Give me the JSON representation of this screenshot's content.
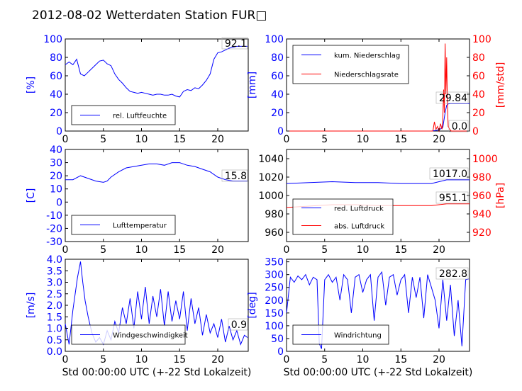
{
  "title": "2012-08-02 Wetterdaten Station FUR□",
  "colors": {
    "primary": "#0000ff",
    "secondary": "#ff0000",
    "axis": "#000000"
  },
  "chart_data": [
    {
      "type": "line",
      "panel": "top-left",
      "ylabel": "[%]",
      "xlim": [
        0,
        24
      ],
      "ylim": [
        0,
        100
      ],
      "xticks": [
        0,
        5,
        10,
        15,
        20
      ],
      "yticks": [
        0,
        20,
        40,
        60,
        80,
        100
      ],
      "legend": {
        "placement": "lower-left",
        "entries": [
          "rel. Luftfeuchte"
        ]
      },
      "annotation": "92.1",
      "series": [
        {
          "name": "rel. Luftfeuchte",
          "color": "#0000ff",
          "x": [
            0,
            0.5,
            1,
            1.5,
            2,
            2.5,
            3,
            3.5,
            4,
            4.5,
            5,
            5.5,
            6,
            6.5,
            7,
            7.5,
            8,
            8.5,
            9,
            9.5,
            10,
            10.5,
            11,
            11.5,
            12,
            12.5,
            13,
            13.5,
            14,
            14.5,
            15,
            15.5,
            16,
            16.5,
            17,
            17.5,
            18,
            18.5,
            19,
            19.5,
            20,
            20.5,
            21,
            21.5,
            22,
            22.5,
            23,
            23.5,
            23.9
          ],
          "y": [
            72,
            75,
            72,
            78,
            62,
            60,
            64,
            68,
            72,
            76,
            77,
            73,
            71,
            62,
            56,
            52,
            47,
            43,
            42,
            41,
            42,
            41,
            40,
            39,
            40,
            40,
            39,
            39,
            40,
            38,
            37,
            43,
            45,
            44,
            47,
            46,
            50,
            55,
            62,
            78,
            85,
            86,
            88,
            90,
            91,
            92,
            92,
            92,
            92
          ]
        }
      ]
    },
    {
      "type": "line",
      "panel": "top-right",
      "ylabel": "[mm]",
      "ylabel_right": "[mm/std]",
      "xlim": [
        0,
        24
      ],
      "ylim": [
        0,
        100
      ],
      "ylim_right": [
        0,
        100
      ],
      "xticks": [
        0,
        5,
        10,
        15,
        20
      ],
      "yticks": [
        0,
        20,
        40,
        60,
        80,
        100
      ],
      "yticks_right": [
        0,
        20,
        40,
        60,
        80,
        100
      ],
      "legend": {
        "placement": "upper-left",
        "entries": [
          "kum. Niederschlag",
          "Niederschlagsrate"
        ]
      },
      "annotations": [
        "29.84",
        "0.0"
      ],
      "series": [
        {
          "name": "kum. Niederschlag",
          "color": "#0000ff",
          "axis": "left",
          "x": [
            0,
            19,
            19.5,
            20,
            20.5,
            20.8,
            21,
            21.2,
            21.5,
            22,
            24
          ],
          "y": [
            0,
            0,
            0.5,
            1.2,
            4,
            20,
            28,
            29.5,
            29.8,
            29.84,
            29.84
          ]
        },
        {
          "name": "Niederschlagsrate",
          "color": "#ff0000",
          "axis": "right",
          "x": [
            0,
            19.2,
            19.4,
            19.6,
            19.8,
            20,
            20.2,
            20.4,
            20.5,
            20.6,
            20.7,
            20.8,
            20.9,
            21,
            21.1,
            21.2,
            21.4,
            21.6,
            22,
            24
          ],
          "y": [
            0,
            0,
            10,
            2,
            5,
            0,
            8,
            2,
            15,
            45,
            20,
            95,
            40,
            80,
            30,
            5,
            2,
            0,
            0,
            0
          ]
        }
      ]
    },
    {
      "type": "line",
      "panel": "middle-left",
      "ylabel": "[C]",
      "xlim": [
        0,
        24
      ],
      "ylim": [
        -30,
        40
      ],
      "xticks": [
        0,
        5,
        10,
        15,
        20
      ],
      "yticks": [
        -30,
        -20,
        -10,
        0,
        10,
        20,
        30,
        40
      ],
      "legend": {
        "placement": "lower-left",
        "entries": [
          "Lufttemperatur"
        ]
      },
      "annotation": "15.8",
      "series": [
        {
          "name": "Lufttemperatur",
          "color": "#0000ff",
          "x": [
            0,
            1,
            2,
            3,
            4,
            5,
            5.5,
            6,
            7,
            8,
            9,
            10,
            11,
            12,
            13,
            14,
            15,
            16,
            17,
            18,
            19,
            20,
            21,
            22,
            23,
            23.9
          ],
          "y": [
            17,
            17,
            20,
            18,
            16,
            15,
            16,
            19,
            23,
            26,
            27,
            28,
            29,
            29,
            28,
            30,
            30,
            28,
            27,
            25,
            23,
            19,
            17,
            16,
            16,
            16
          ]
        }
      ]
    },
    {
      "type": "line",
      "panel": "middle-right",
      "ylabel_right": "[hPa]",
      "xlim": [
        0,
        24
      ],
      "ylim": [
        950,
        1050
      ],
      "ylim_right": [
        910,
        1010
      ],
      "xticks": [
        0,
        5,
        10,
        15,
        20
      ],
      "yticks": [
        960,
        980,
        1000,
        1020,
        1040
      ],
      "yticks_right": [
        920,
        940,
        960,
        980,
        1000
      ],
      "legend": {
        "placement": "lower-left",
        "entries": [
          "red. Luftdruck",
          "abs. Luftdruck"
        ]
      },
      "annotations": [
        "1017.0",
        "951.1"
      ],
      "series": [
        {
          "name": "red. Luftdruck",
          "color": "#0000ff",
          "axis": "left",
          "x": [
            0,
            3,
            6,
            9,
            12,
            15,
            18,
            19,
            20,
            21,
            22,
            24
          ],
          "y": [
            1013,
            1014,
            1015,
            1014,
            1014,
            1013,
            1013,
            1013,
            1015,
            1017,
            1017,
            1017
          ]
        },
        {
          "name": "abs. Luftdruck",
          "color": "#ff0000",
          "axis": "right",
          "x": [
            0,
            2,
            4,
            6,
            9,
            12,
            15,
            18,
            19,
            20,
            21,
            22,
            24
          ],
          "y": [
            947,
            948,
            949,
            950,
            950,
            949,
            949,
            949,
            949,
            950,
            951,
            951,
            951
          ]
        }
      ]
    },
    {
      "type": "line",
      "panel": "bottom-left",
      "ylabel": "[m/s]",
      "xlabel": "Std 00:00:00 UTC (+-22 Std Lokalzeit)",
      "xlim": [
        0,
        24
      ],
      "ylim": [
        0,
        4
      ],
      "xticks": [
        0,
        5,
        10,
        15,
        20
      ],
      "yticks": [
        0.0,
        0.5,
        1.0,
        1.5,
        2.0,
        2.5,
        3.0,
        3.5,
        4.0
      ],
      "legend": {
        "placement": "lower-left",
        "entries": [
          "Windgeschwindigkeit"
        ]
      },
      "annotation": "0.9",
      "series": [
        {
          "name": "Windgeschwindigkeit",
          "color": "#0000ff",
          "x": [
            0,
            0.5,
            1,
            1.3,
            1.6,
            2,
            2.3,
            2.6,
            3,
            3.5,
            4,
            4.5,
            5,
            5.5,
            6,
            6.5,
            7,
            7.5,
            8,
            8.5,
            9,
            9.5,
            10,
            10.5,
            11,
            11.5,
            12,
            12.5,
            13,
            13.5,
            14,
            14.5,
            15,
            15.5,
            16,
            16.5,
            17,
            17.5,
            18,
            18.5,
            19,
            19.5,
            20,
            20.5,
            21,
            21.5,
            22,
            22.5,
            23,
            23.5,
            23.9
          ],
          "y": [
            1.2,
            0.3,
            1.8,
            2.5,
            3.2,
            3.9,
            3.0,
            2.2,
            1.5,
            0.8,
            0.4,
            0.6,
            0.3,
            0.9,
            0.5,
            1.3,
            0.8,
            1.9,
            1.2,
            2.3,
            1.0,
            2.6,
            1.4,
            2.8,
            1.2,
            2.4,
            1.5,
            2.7,
            1.1,
            2.6,
            1.3,
            2.2,
            1.4,
            2.6,
            0.9,
            2.3,
            1.2,
            1.9,
            0.7,
            1.6,
            0.8,
            1.2,
            0.6,
            1.4,
            0.4,
            1.1,
            0.5,
            0.9,
            0.3,
            0.7,
            0.6
          ]
        }
      ]
    },
    {
      "type": "line",
      "panel": "bottom-right",
      "ylabel": "[deg]",
      "xlabel": "Std 00:00:00 UTC (+-22 Std Lokalzeit)",
      "xlim": [
        0,
        24
      ],
      "ylim": [
        0,
        360
      ],
      "xticks": [
        0,
        5,
        10,
        15,
        20
      ],
      "yticks": [
        0,
        50,
        100,
        150,
        200,
        250,
        300,
        350
      ],
      "legend": {
        "placement": "lower-left",
        "entries": [
          "Windrichtung"
        ]
      },
      "annotation": "282.8",
      "series": [
        {
          "name": "Windrichtung",
          "color": "#0000ff",
          "x": [
            0,
            0.5,
            1,
            1.5,
            2,
            2.5,
            3,
            3.5,
            4,
            4.3,
            4.6,
            5,
            5.5,
            6,
            6.5,
            7,
            7.5,
            8,
            8.5,
            9,
            9.5,
            10,
            10.5,
            11,
            11.5,
            12,
            12.5,
            13,
            13.5,
            14,
            14.5,
            15,
            15.5,
            16,
            16.5,
            17,
            17.5,
            18,
            18.5,
            19,
            19.5,
            20,
            20.5,
            21,
            21.5,
            22,
            22.5,
            23,
            23.5,
            23.9
          ],
          "y": [
            150,
            290,
            270,
            295,
            280,
            300,
            260,
            290,
            280,
            30,
            10,
            280,
            300,
            270,
            290,
            200,
            300,
            280,
            150,
            290,
            300,
            230,
            280,
            300,
            120,
            290,
            310,
            180,
            290,
            300,
            220,
            280,
            300,
            150,
            290,
            210,
            290,
            130,
            300,
            250,
            200,
            90,
            280,
            120,
            260,
            60,
            200,
            20,
            280,
            283
          ]
        }
      ]
    }
  ]
}
